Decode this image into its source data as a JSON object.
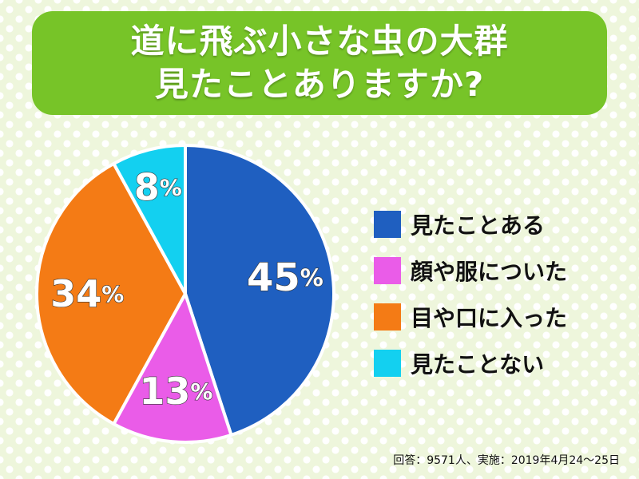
{
  "title": {
    "line1": "道に飛ぶ小さな虫の大群",
    "line2": "見たことありますか?"
  },
  "chart_data": {
    "type": "pie",
    "slices": [
      {
        "label": "見たことある",
        "value": 45,
        "display": "45",
        "color": "#1f5fc0"
      },
      {
        "label": "顔や服についた",
        "value": 13,
        "display": "13",
        "color": "#ea5ce8"
      },
      {
        "label": "目や口に入った",
        "value": 34,
        "display": "34",
        "color": "#f47b15"
      },
      {
        "label": "見たことない",
        "value": 8,
        "display": "8",
        "color": "#13d0f0"
      }
    ],
    "unit": "%",
    "start": "12 o'clock",
    "direction": "clockwise",
    "legend_position": "right"
  },
  "footnote": "回答：9571人、実施：2019年4月24～25日"
}
